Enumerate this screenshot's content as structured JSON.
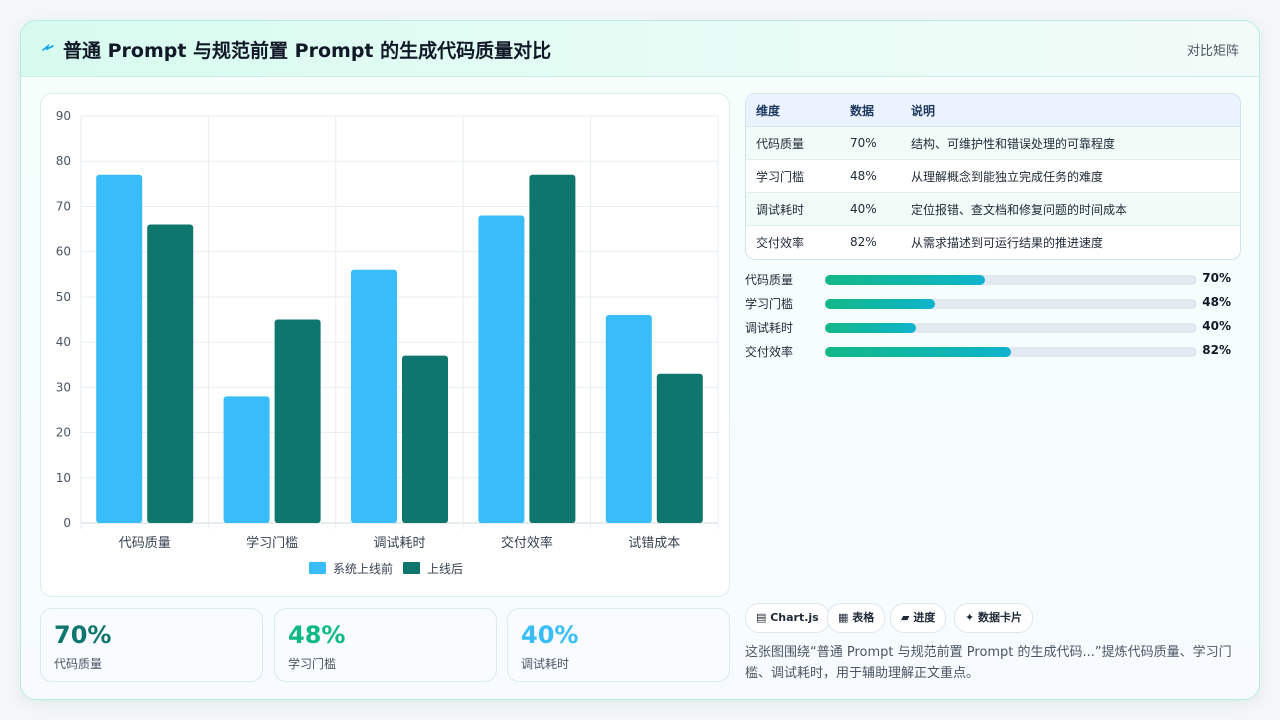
{
  "header": {
    "title": "普通 Prompt 与规范前置 Prompt 的生成代码质量对比",
    "right_label": "对比矩阵"
  },
  "colors": {
    "series_before": "#38bdf8",
    "series_after": "#0f766e",
    "kpi1": "#0f766e",
    "kpi2": "#10b981",
    "kpi3": "#38bdf8"
  },
  "chart_data": {
    "type": "bar",
    "categories": [
      "代码质量",
      "学习门槛",
      "调试耗时",
      "交付效率",
      "试错成本"
    ],
    "series": [
      {
        "name": "系统上线前",
        "values": [
          77,
          28,
          56,
          68,
          46
        ]
      },
      {
        "name": "上线后",
        "values": [
          66,
          45,
          37,
          77,
          33
        ]
      }
    ],
    "ylim": [
      0,
      90
    ],
    "yticks": [
      0,
      10,
      20,
      30,
      40,
      50,
      60,
      70,
      80,
      90
    ],
    "legend": "bottom",
    "grid": true
  },
  "kpis": [
    {
      "value": "70%",
      "label": "代码质量"
    },
    {
      "value": "48%",
      "label": "学习门槛"
    },
    {
      "value": "40%",
      "label": "调试耗时"
    }
  ],
  "table": {
    "headers": [
      "维度",
      "数据",
      "说明"
    ],
    "rows": [
      [
        "代码质量",
        "70%",
        "结构、可维护性和错误处理的可靠程度"
      ],
      [
        "学习门槛",
        "48%",
        "从理解概念到能独立完成任务的难度"
      ],
      [
        "调试耗时",
        "40%",
        "定位报错、查文档和修复问题的时间成本"
      ],
      [
        "交付效率",
        "82%",
        "从需求描述到可运行结果的推进速度"
      ]
    ]
  },
  "progress": [
    {
      "label": "代码质量",
      "value": 70,
      "text": "70%",
      "fill": 0.43
    },
    {
      "label": "学习门槛",
      "value": 48,
      "text": "48%",
      "fill": 0.295
    },
    {
      "label": "调试耗时",
      "value": 40,
      "text": "40%",
      "fill": 0.245
    },
    {
      "label": "交付效率",
      "value": 82,
      "text": "82%",
      "fill": 0.5
    }
  ],
  "tags": [
    "▤ Chart.js",
    "▦ 表格",
    "▰ 进度",
    "✦ 数据卡片"
  ],
  "description": "这张图围绕“普通 Prompt 与规范前置 Prompt 的生成代码...”提炼代码质量、学习门槛、调试耗时，用于辅助理解正文重点。"
}
